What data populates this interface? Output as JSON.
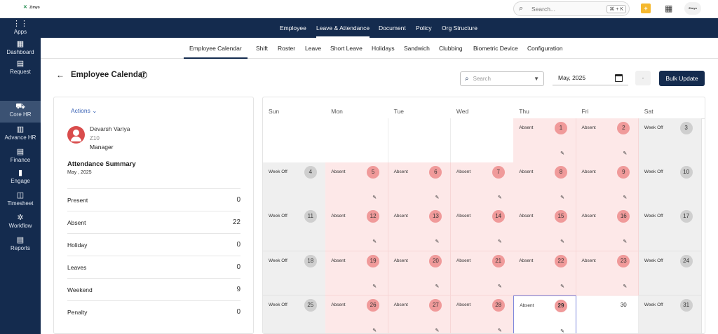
{
  "app": {
    "logo_text": "Zimyo"
  },
  "topbar": {
    "search_placeholder": "Search...",
    "shortcut": "⌘ + K",
    "avatar_text": "Zimyo"
  },
  "sidebar": {
    "items": [
      {
        "label": "Apps",
        "icon": "apps-grid-icon"
      },
      {
        "label": "Dashboard",
        "icon": "dashboard-icon"
      },
      {
        "label": "Request",
        "icon": "request-doc-icon"
      },
      {
        "label": "Core HR",
        "icon": "truck-icon",
        "active": true
      },
      {
        "label": "Advance HR",
        "icon": "building-icon"
      },
      {
        "label": "Finance",
        "icon": "finance-doc-icon"
      },
      {
        "label": "Engage",
        "icon": "chart-icon"
      },
      {
        "label": "Timesheet",
        "icon": "timesheet-icon"
      },
      {
        "label": "Workflow",
        "icon": "gear-icon"
      },
      {
        "label": "Reports",
        "icon": "reports-doc-icon"
      }
    ]
  },
  "nav_primary": [
    "Employee",
    "Leave & Attendance",
    "Document",
    "Policy",
    "Org Structure"
  ],
  "nav_primary_active": "Leave & Attendance",
  "nav_secondary": [
    "Employee Calendar",
    "Shift",
    "Roster",
    "Leave",
    "Short Leave",
    "Holidays",
    "Sandwich",
    "Clubbing",
    "Biometric Device",
    "Configuration"
  ],
  "nav_secondary_active": "Employee Calendar",
  "page": {
    "title": "Employee Calendar"
  },
  "toolbar": {
    "search_placeholder": "Search",
    "month_value": "May, 2025",
    "more_label": "·",
    "bulk_label": "Bulk Update"
  },
  "employee": {
    "actions_label": "Actions",
    "name": "Devarsh Variya",
    "code": "Z10",
    "role": "Manager"
  },
  "summary": {
    "title": "Attendance Summary",
    "month": "May , 2025",
    "rows": [
      {
        "label": "Present",
        "value": "0"
      },
      {
        "label": "Absent",
        "value": "22"
      },
      {
        "label": "Holiday",
        "value": "0"
      },
      {
        "label": "Leaves",
        "value": "0"
      },
      {
        "label": "Weekend",
        "value": "9"
      },
      {
        "label": "Penalty",
        "value": "0"
      }
    ]
  },
  "calendar": {
    "weekdays": [
      "Sun",
      "Mon",
      "Tue",
      "Wed",
      "Thu",
      "Fri",
      "Sat"
    ],
    "weeks": [
      [
        null,
        null,
        null,
        null,
        {
          "day": "1",
          "status": "Absent",
          "type": "absent"
        },
        {
          "day": "2",
          "status": "Absent",
          "type": "absent"
        },
        {
          "day": "3",
          "status": "Week Off",
          "type": "weekoff"
        }
      ],
      [
        {
          "day": "4",
          "status": "Week Off",
          "type": "weekoff"
        },
        {
          "day": "5",
          "status": "Absent",
          "type": "absent"
        },
        {
          "day": "6",
          "status": "Absent",
          "type": "absent"
        },
        {
          "day": "7",
          "status": "Absent",
          "type": "absent"
        },
        {
          "day": "8",
          "status": "Absent",
          "type": "absent"
        },
        {
          "day": "9",
          "status": "Absent",
          "type": "absent"
        },
        {
          "day": "10",
          "status": "Week Off",
          "type": "weekoff"
        }
      ],
      [
        {
          "day": "11",
          "status": "Week Off",
          "type": "weekoff"
        },
        {
          "day": "12",
          "status": "Absent",
          "type": "absent"
        },
        {
          "day": "13",
          "status": "Absent",
          "type": "absent"
        },
        {
          "day": "14",
          "status": "Absent",
          "type": "absent"
        },
        {
          "day": "15",
          "status": "Absent",
          "type": "absent"
        },
        {
          "day": "16",
          "status": "Absent",
          "type": "absent"
        },
        {
          "day": "17",
          "status": "Week Off",
          "type": "weekoff"
        }
      ],
      [
        {
          "day": "18",
          "status": "Week Off",
          "type": "weekoff"
        },
        {
          "day": "19",
          "status": "Absent",
          "type": "absent"
        },
        {
          "day": "20",
          "status": "Absent",
          "type": "absent"
        },
        {
          "day": "21",
          "status": "Absent",
          "type": "absent"
        },
        {
          "day": "22",
          "status": "Absent",
          "type": "absent"
        },
        {
          "day": "23",
          "status": "Absent",
          "type": "absent"
        },
        {
          "day": "24",
          "status": "Week Off",
          "type": "weekoff"
        }
      ],
      [
        {
          "day": "25",
          "status": "Week Off",
          "type": "weekoff"
        },
        {
          "day": "26",
          "status": "Absent",
          "type": "absent"
        },
        {
          "day": "27",
          "status": "Absent",
          "type": "absent"
        },
        {
          "day": "28",
          "status": "Absent",
          "type": "absent"
        },
        {
          "day": "29",
          "status": "Absent",
          "type": "today"
        },
        {
          "day": "30",
          "status": "",
          "type": "plain"
        },
        {
          "day": "31",
          "status": "Week Off",
          "type": "weekoff"
        }
      ]
    ]
  },
  "colors": {
    "navy": "#142b4e",
    "absent_bg": "#fde8e8",
    "absent_badge": "#f09a9a",
    "weekoff_bg": "#efefef",
    "link_blue": "#3a62b5"
  }
}
